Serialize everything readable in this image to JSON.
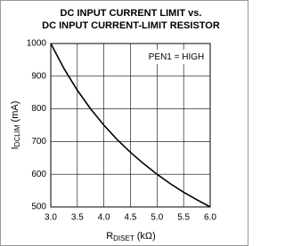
{
  "chart_data": {
    "type": "line",
    "title": [
      "DC INPUT CURRENT LIMIT vs.",
      "DC INPUT CURRENT-LIMIT RESISTOR"
    ],
    "xlabel": {
      "main": "R",
      "sub": "DISET",
      "unit": "(kΩ)"
    },
    "ylabel": {
      "main": "I",
      "sub": "DCLIM",
      "unit": "(mA)"
    },
    "annotation": "PEN1 = HIGH",
    "x": [
      3.0,
      3.25,
      3.5,
      3.75,
      4.0,
      4.25,
      4.5,
      4.75,
      5.0,
      5.25,
      5.5,
      5.75,
      6.0
    ],
    "series": [
      {
        "color": "#000000",
        "values": [
          1000,
          923,
          857,
          800,
          750,
          706,
          667,
          632,
          600,
          571,
          545,
          522,
          500
        ]
      }
    ],
    "xlim": [
      3.0,
      6.0
    ],
    "xticks": [
      {
        "value": 3.0,
        "label": "3.0"
      },
      3.5,
      {
        "value": 4.0,
        "label": "4.0"
      },
      4.5,
      {
        "value": 5.0,
        "label": "5.0"
      },
      5.5,
      {
        "value": 6.0,
        "label": "6.0"
      }
    ],
    "ylim": [
      500,
      1000
    ],
    "yticks": [
      500,
      600,
      700,
      800,
      900,
      1000
    ],
    "grid": true
  }
}
